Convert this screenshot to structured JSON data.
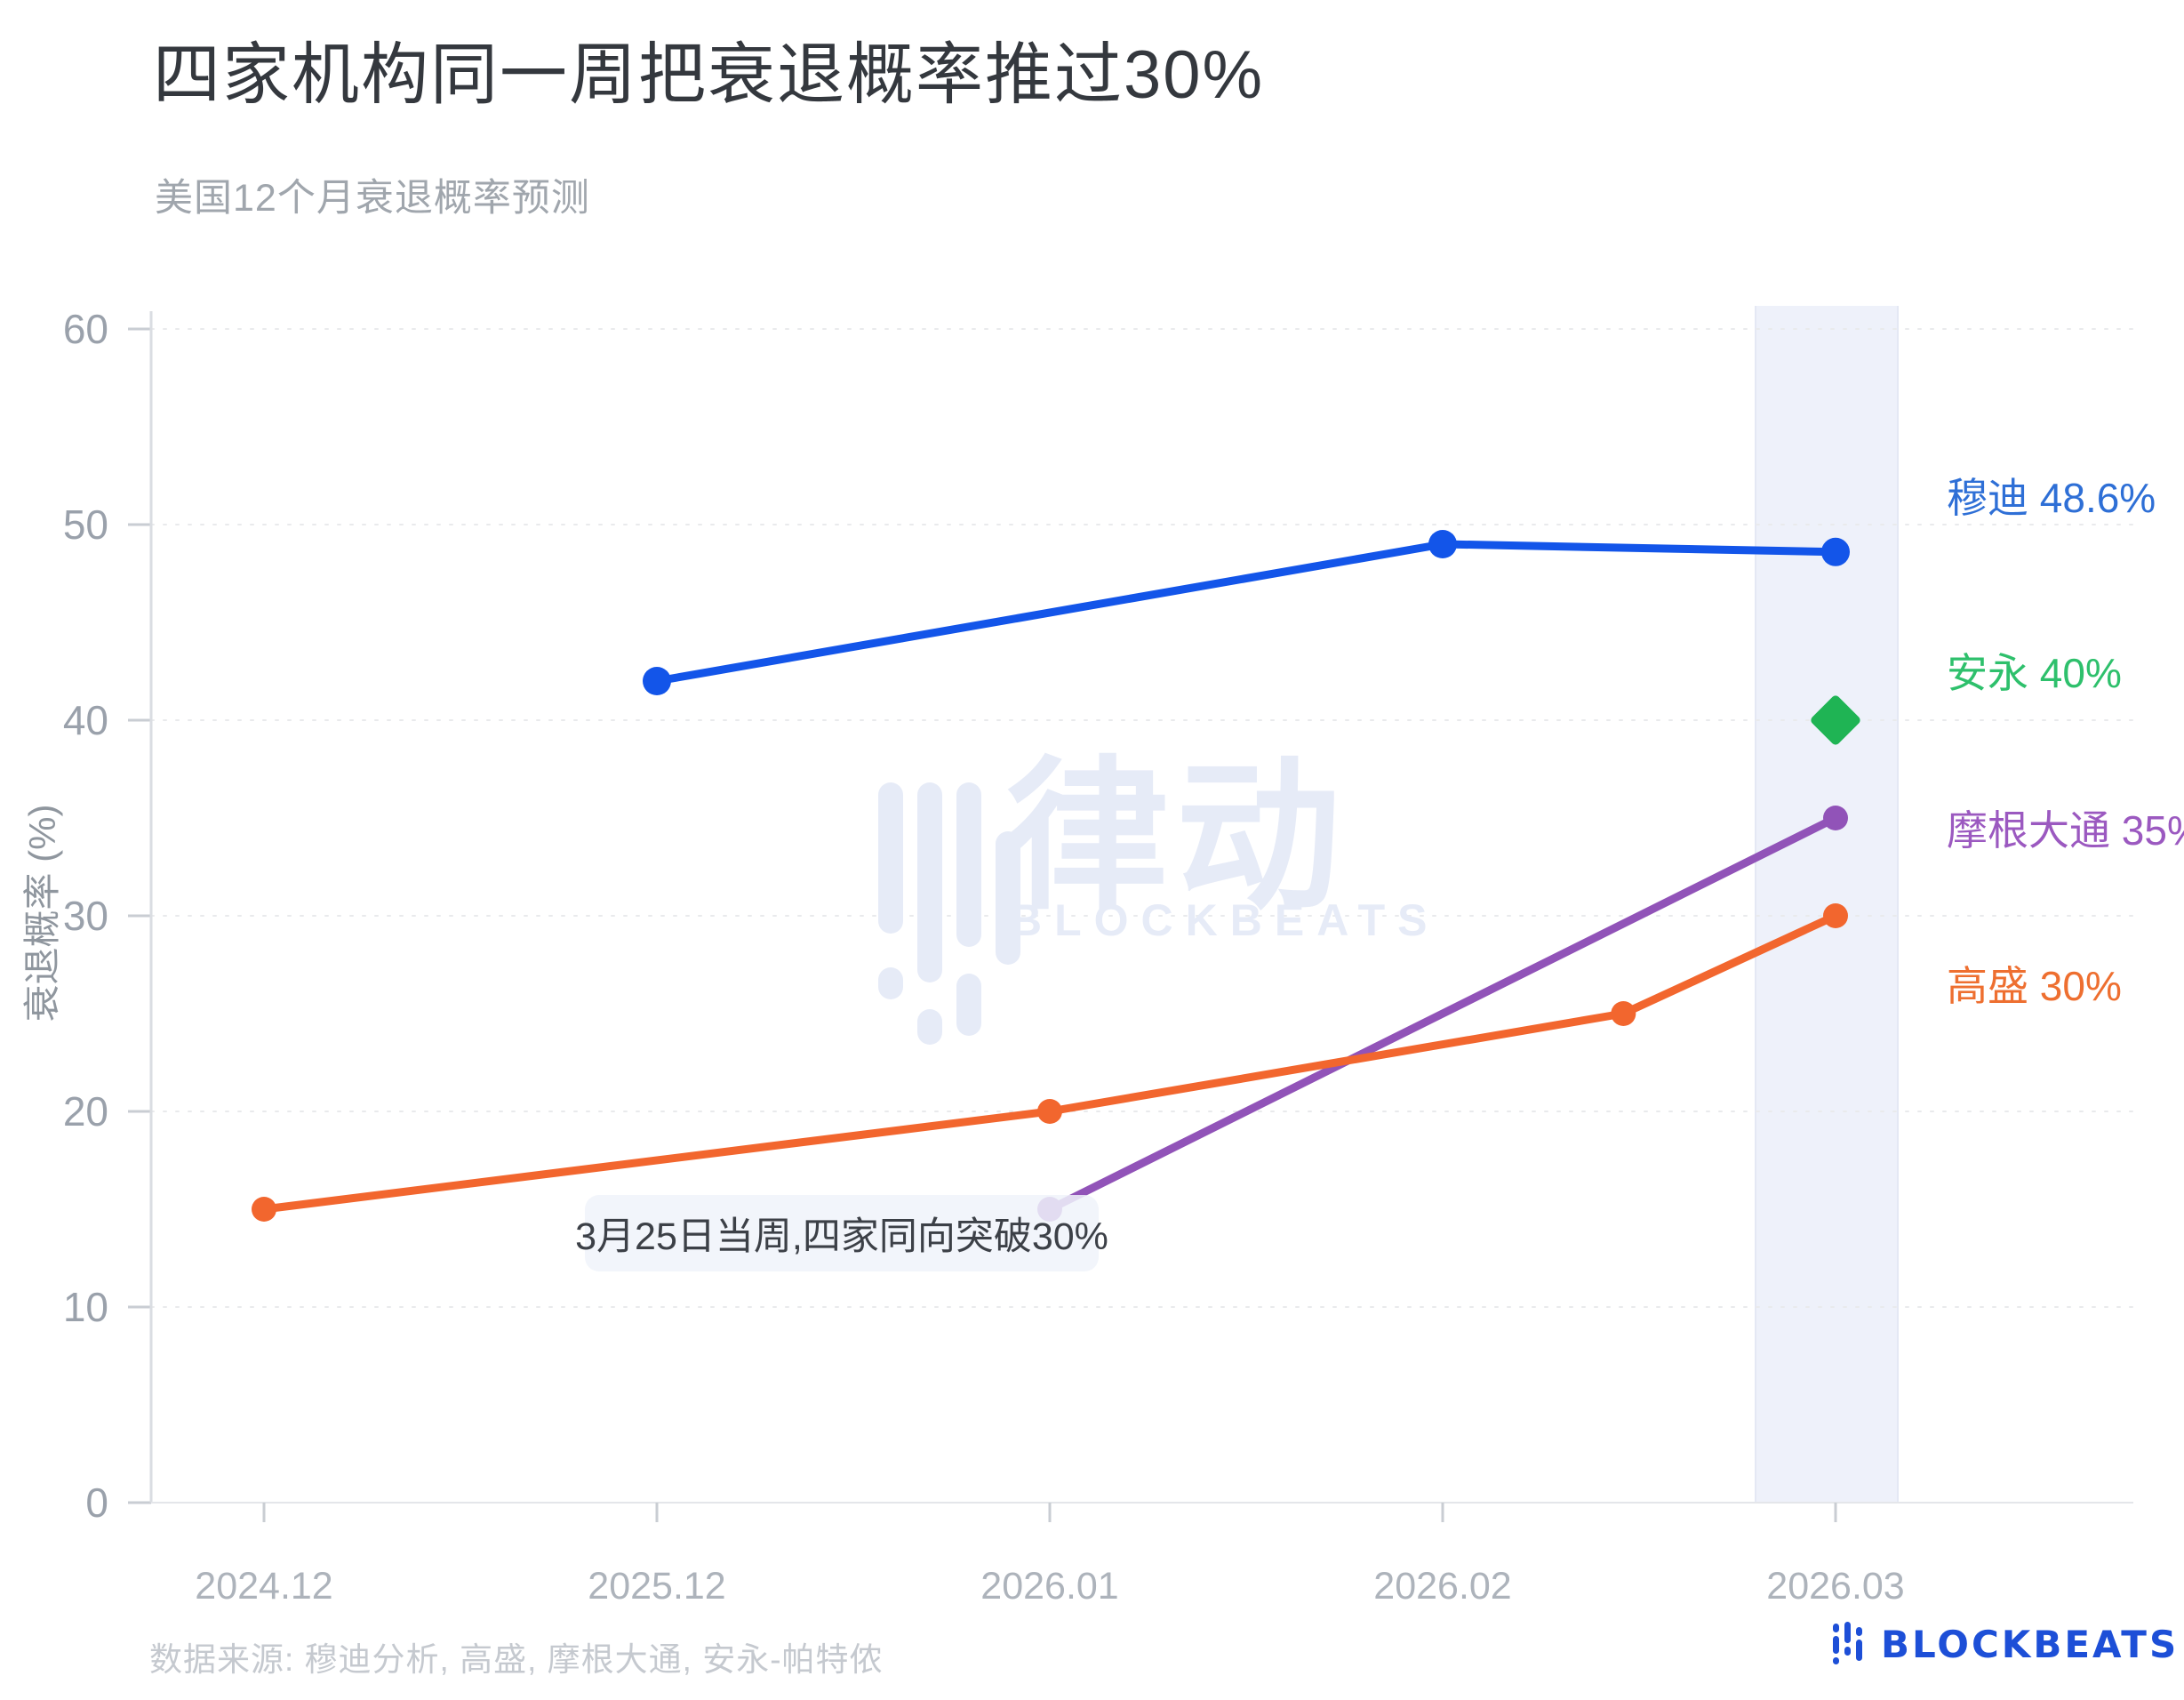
{
  "chart_data": {
    "type": "line",
    "title": "四家机构同一周把衰退概率推过30%",
    "subtitle": "美国12个月衰退概率预测",
    "ylabel": "衰退概率 (%)",
    "ylim": [
      0,
      60
    ],
    "yticks": [
      0,
      10,
      20,
      30,
      40,
      50,
      60
    ],
    "x_categories": [
      "2024.12",
      "2025.12",
      "2026.01",
      "2026.02",
      "2026.03"
    ],
    "grid": "horizontal-dotted",
    "legend_position": "right-of-plot",
    "series": [
      {
        "name": "穆迪",
        "label": "穆迪 48.6%",
        "color": "#1355e9",
        "label_color": "#2e6fd6",
        "marker": "circle",
        "points": [
          {
            "x": "2025.12",
            "xi": 1,
            "value": 42
          },
          {
            "x": "2026.02",
            "xi": 3,
            "value": 49
          },
          {
            "x": "2026.03",
            "xi": 4,
            "value": 48.6
          }
        ]
      },
      {
        "name": "安永",
        "label": "安永 40%",
        "color": "#1fb454",
        "label_color": "#2ec06c",
        "marker": "diamond",
        "points": [
          {
            "x": "2026.03",
            "xi": 4,
            "value": 40
          }
        ]
      },
      {
        "name": "摩根大通",
        "label": "摩根大通 35%",
        "color": "#9153b8",
        "label_color": "#9b59c0",
        "marker": "circle",
        "points": [
          {
            "x": "2026.01",
            "xi": 2,
            "value": 15
          },
          {
            "x": "2026.03",
            "xi": 4,
            "value": 35
          }
        ]
      },
      {
        "name": "高盛",
        "label": "高盛 30%",
        "color": "#f2662e",
        "label_color": "#ee6f30",
        "marker": "circle",
        "points": [
          {
            "x": "2024.12",
            "xi": 0,
            "value": 15
          },
          {
            "x": "2026.01",
            "xi": 2,
            "value": 20
          },
          {
            "x": "2026.02",
            "xi": 3.46,
            "value": 25
          },
          {
            "x": "2026.03",
            "xi": 4,
            "value": 30
          }
        ]
      }
    ],
    "highlight_band": {
      "x_category": "2026.03"
    },
    "annotation": {
      "text": "3月25日当周,四家同向突破30%"
    },
    "source": "数据来源: 穆迪分析, 高盛, 摩根大通, 安永-帕特侬",
    "watermark": {
      "cn": "律动",
      "en": "BLOCKBEATS"
    },
    "logo_text": "BLOCKBEATS"
  },
  "colors": {
    "band": "#eef1fa",
    "band_edge": "#e4e8f4",
    "gridline": "#e9eaec",
    "axis_line": "#dadde2",
    "baseline": "#e4e6ea",
    "tick": "#c9cdd3",
    "ytick_label": "#9aa1ab",
    "xtick_label": "#adb3bb",
    "watermark": "#e6ebf7",
    "logo_blue": "#1d4fd7"
  }
}
